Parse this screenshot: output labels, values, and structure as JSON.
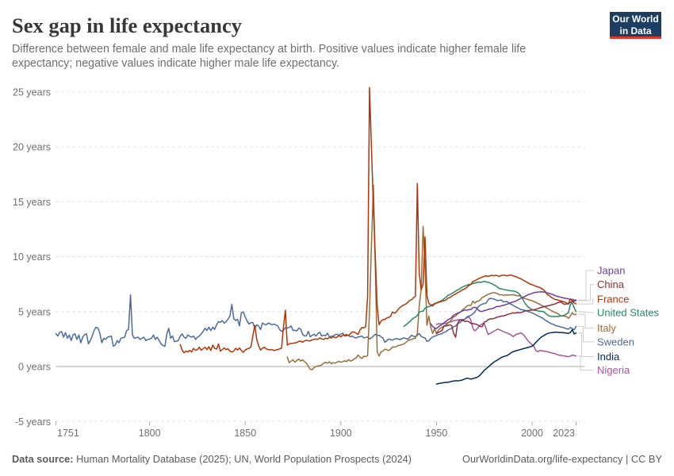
{
  "header": {
    "title": "Sex gap in life expectancy",
    "subtitle": "Difference between female and male life expectancy at birth. Positive values indicate higher female life expectancy; negative values indicate higher male life expectancy.",
    "subtitle_lines": [
      "Difference between female and male life expectancy at birth. Positive values indicate higher female life",
      "expectancy; negative values indicate higher male life expectancy."
    ],
    "logo": {
      "line1": "Our World",
      "line2": "in Data",
      "bg_color": "#1d3d63",
      "accent_color": "#e0362c"
    }
  },
  "chart_data": {
    "type": "line",
    "title": "Sex gap in life expectancy",
    "xlabel": "",
    "ylabel": "years",
    "xlim": [
      1751,
      2023
    ],
    "ylim": [
      -5,
      25.5
    ],
    "x_ticks": [
      1751,
      1800,
      1850,
      1900,
      1950,
      2000,
      2023
    ],
    "y_ticks": [
      -5,
      0,
      5,
      10,
      15,
      20,
      25
    ],
    "y_tick_suffix": " years",
    "grid": "horizontal-dashed",
    "legend_position": "right-edge-labels",
    "series": [
      {
        "name": "Japan",
        "color": "#6D3E91",
        "start_year": 1947,
        "end_year": 2023,
        "values": [
          3.9,
          3.65,
          3.5,
          3.45,
          3.61,
          3.74,
          3.84,
          3.99,
          4.12,
          4.27,
          4.34,
          4.49,
          4.67,
          4.76,
          4.87,
          4.92,
          5.02,
          5.1,
          5.13,
          5.13,
          5.17,
          5.2,
          5.35,
          5.39,
          5.33,
          5.12,
          5.02,
          5.02,
          5.1,
          5.12,
          5.2,
          5.24,
          5.26,
          5.32,
          5.42,
          5.48,
          5.45,
          5.55,
          5.55,
          5.63,
          5.68,
          5.75,
          5.81,
          5.87,
          5.92,
          6.0,
          6.1,
          6.2,
          6.28,
          6.37,
          6.45,
          6.55,
          6.6,
          6.66,
          6.72,
          6.75,
          6.78,
          6.79,
          6.8,
          6.78,
          6.75,
          6.7,
          6.65,
          6.6,
          6.55,
          6.45,
          6.4,
          6.35,
          6.3,
          6.25,
          6.22,
          6.2,
          6.15,
          6.1,
          6.12,
          6.05,
          6.05
        ]
      },
      {
        "name": "China",
        "color": "#883039",
        "start_year": 1950,
        "end_year": 2023,
        "values": [
          3.0,
          3.1,
          3.2,
          3.3,
          3.72,
          3.69,
          3.75,
          3.8,
          3.72,
          3.0,
          2.67,
          3.9,
          4.23,
          4.21,
          4.19,
          4.1,
          4.13,
          4.07,
          3.92,
          3.92,
          3.87,
          3.84,
          3.73,
          3.64,
          3.63,
          4.04,
          4.1,
          4.25,
          4.34,
          4.34,
          4.37,
          4.45,
          4.51,
          4.54,
          4.59,
          4.61,
          4.66,
          4.72,
          4.79,
          4.82,
          4.89,
          4.86,
          4.92,
          4.9,
          4.91,
          4.96,
          5.05,
          5.08,
          5.1,
          5.12,
          5.13,
          5.16,
          5.22,
          5.26,
          5.34,
          5.38,
          5.43,
          5.48,
          5.52,
          5.55,
          5.6,
          5.65,
          5.7,
          5.78,
          5.85,
          5.88,
          5.75,
          5.65,
          5.7,
          5.75,
          5.85,
          5.92,
          5.97,
          6.0
        ]
      },
      {
        "name": "France",
        "color": "#B13507",
        "start_year": 1816,
        "end_year": 2023,
        "values": [
          2.0,
          1.5,
          1.25,
          1.4,
          1.32,
          1.47,
          1.32,
          1.65,
          1.47,
          1.54,
          1.76,
          1.47,
          1.62,
          1.76,
          1.54,
          1.8,
          1.45,
          1.95,
          1.65,
          1.58,
          2.06,
          1.4,
          1.54,
          1.69,
          1.54,
          1.62,
          1.4,
          1.32,
          1.41,
          1.66,
          1.5,
          1.7,
          1.45,
          1.3,
          1.5,
          1.6,
          1.65,
          1.8,
          2.8,
          3.75,
          2.5,
          1.9,
          1.5,
          1.66,
          1.76,
          1.6,
          1.55,
          1.5,
          1.55,
          1.45,
          1.5,
          1.55,
          1.6,
          1.68,
          3.6,
          5.12,
          1.95,
          2.06,
          2.11,
          2.12,
          2.15,
          2.18,
          2.29,
          2.31,
          2.22,
          2.33,
          2.38,
          2.35,
          2.33,
          2.43,
          2.48,
          2.5,
          2.48,
          2.61,
          2.51,
          2.47,
          2.58,
          2.53,
          2.65,
          2.59,
          2.72,
          2.63,
          2.67,
          2.82,
          2.7,
          2.86,
          2.84,
          2.92,
          2.81,
          2.98,
          3.15,
          3.13,
          3.04,
          2.92,
          3.32,
          3.55,
          3.51,
          3.63,
          6.4,
          25.4,
          20.0,
          14.5,
          10.0,
          5.5,
          3.8,
          4.14,
          4.26,
          4.29,
          4.42,
          4.47,
          4.58,
          4.97,
          4.86,
          4.97,
          5.21,
          5.38,
          5.51,
          5.61,
          5.69,
          5.84,
          6.02,
          6.08,
          6.27,
          6.39,
          16.65,
          8.5,
          7.0,
          7.5,
          11.8,
          6.5,
          5.74,
          5.62,
          5.62,
          5.73,
          5.77,
          5.83,
          5.89,
          5.94,
          5.99,
          6.06,
          6.22,
          6.29,
          6.39,
          6.52,
          6.6,
          6.72,
          6.8,
          6.92,
          7.02,
          7.08,
          7.22,
          7.37,
          7.48,
          7.74,
          7.8,
          7.9,
          8.0,
          8.05,
          8.15,
          8.2,
          8.25,
          8.2,
          8.25,
          8.3,
          8.25,
          8.3,
          8.25,
          8.2,
          8.3,
          8.3,
          8.3,
          8.25,
          8.3,
          8.33,
          8.25,
          8.2,
          8.15,
          8.05,
          8.0,
          7.9,
          7.8,
          7.7,
          7.6,
          7.5,
          7.45,
          7.38,
          7.3,
          7.25,
          7.2,
          7.1,
          7.0,
          6.8,
          6.55,
          6.45,
          6.3,
          6.2,
          6.1,
          6.08,
          6.02,
          5.98,
          5.93,
          5.88,
          5.78,
          5.68,
          6.15,
          6.0,
          5.8,
          5.7
        ]
      },
      {
        "name": "United States",
        "color": "#2C8465",
        "start_year": 1933,
        "end_year": 2023,
        "values": [
          3.65,
          3.79,
          3.94,
          4.07,
          4.27,
          4.42,
          4.49,
          4.65,
          4.94,
          5.02,
          5.05,
          5.3,
          5.41,
          5.46,
          5.52,
          5.51,
          5.67,
          5.79,
          5.87,
          5.94,
          6.03,
          6.18,
          6.3,
          6.48,
          6.54,
          6.64,
          6.75,
          6.86,
          6.97,
          7.05,
          7.17,
          7.28,
          7.33,
          7.41,
          7.47,
          7.48,
          7.57,
          7.59,
          7.65,
          7.69,
          7.66,
          7.7,
          7.75,
          7.7,
          7.67,
          7.61,
          7.53,
          7.43,
          7.35,
          7.21,
          7.09,
          7.07,
          7.02,
          6.98,
          6.95,
          6.92,
          6.89,
          6.89,
          6.83,
          6.78,
          6.66,
          6.45,
          6.15,
          5.85,
          5.6,
          5.4,
          5.3,
          5.19,
          5.13,
          5.1,
          5.06,
          5.04,
          5.02,
          5.0,
          4.85,
          4.7,
          4.6,
          4.57,
          4.55,
          4.55,
          4.55,
          4.57,
          4.6,
          4.62,
          4.68,
          4.78,
          4.9,
          5.65,
          5.8,
          5.35,
          5.0
        ]
      },
      {
        "name": "Italy",
        "color": "#996D39",
        "start_year": 1872,
        "end_year": 2023,
        "values": [
          0.87,
          0.35,
          0.5,
          0.6,
          0.4,
          0.55,
          0.68,
          0.5,
          0.6,
          0.45,
          0.3,
          0.0,
          -0.25,
          -0.28,
          -0.1,
          0.0,
          0.05,
          0.07,
          0.15,
          0.3,
          0.38,
          0.3,
          0.43,
          0.25,
          0.35,
          0.3,
          0.4,
          0.48,
          0.4,
          0.45,
          0.53,
          0.45,
          0.63,
          0.5,
          0.55,
          0.7,
          0.78,
          1.04,
          0.84,
          0.73,
          0.94,
          0.9,
          1.0,
          5.0,
          11.0,
          16.5,
          9.0,
          1.31,
          0.95,
          1.33,
          1.41,
          1.58,
          1.52,
          1.46,
          1.58,
          1.79,
          1.76,
          1.82,
          1.91,
          1.93,
          2.01,
          2.04,
          2.19,
          2.35,
          2.42,
          2.47,
          2.54,
          2.56,
          3.0,
          5.5,
          7.0,
          12.75,
          9.0,
          3.75,
          4.6,
          3.6,
          3.0,
          3.45,
          3.0,
          3.32,
          3.49,
          3.59,
          3.68,
          3.76,
          3.97,
          4.09,
          4.29,
          4.52,
          4.59,
          4.78,
          4.9,
          5.03,
          5.23,
          5.32,
          5.52,
          5.57,
          5.57,
          5.96,
          5.77,
          5.92,
          5.96,
          6.07,
          6.3,
          6.36,
          6.48,
          6.57,
          6.63,
          6.69,
          6.73,
          6.69,
          6.63,
          6.51,
          6.55,
          6.48,
          6.51,
          6.5,
          6.52,
          6.53,
          6.54,
          6.5,
          6.45,
          6.45,
          6.4,
          6.27,
          6.21,
          6.15,
          6.09,
          6.03,
          6.0,
          5.91,
          5.85,
          5.73,
          5.67,
          5.55,
          5.49,
          5.4,
          5.3,
          5.2,
          5.1,
          5.0,
          4.92,
          4.85,
          4.75,
          4.6,
          4.62,
          4.58,
          4.55,
          4.38,
          4.6,
          4.9,
          4.72,
          4.76
        ]
      },
      {
        "name": "Sweden",
        "color": "#4C6A9C",
        "start_year": 1751,
        "end_year": 2023,
        "values": [
          3.0,
          2.77,
          3.1,
          3.18,
          2.67,
          3.08,
          2.57,
          2.87,
          2.36,
          2.9,
          2.97,
          2.46,
          2.87,
          2.16,
          2.67,
          2.9,
          2.97,
          2.06,
          2.36,
          2.77,
          3.28,
          3.58,
          3.48,
          3.0,
          2.16,
          2.57,
          2.46,
          2.67,
          2.72,
          2.77,
          1.85,
          1.95,
          2.36,
          2.16,
          2.57,
          2.62,
          2.67,
          3.28,
          3.38,
          6.53,
          2.87,
          2.57,
          2.62,
          2.67,
          2.46,
          2.57,
          2.67,
          2.36,
          2.46,
          2.5,
          2.57,
          2.87,
          2.46,
          2.67,
          2.36,
          2.06,
          1.9,
          1.85,
          2.97,
          3.48,
          2.57,
          2.77,
          2.26,
          2.3,
          2.36,
          2.77,
          2.97,
          2.67,
          2.57,
          2.87,
          2.75,
          2.67,
          2.77,
          2.46,
          2.67,
          2.77,
          2.97,
          3.2,
          3.48,
          3.28,
          3.58,
          3.28,
          3.58,
          3.38,
          3.8,
          4.09,
          4.02,
          4.19,
          3.94,
          4.09,
          4.3,
          4.6,
          5.65,
          4.37,
          4.19,
          4.3,
          3.7,
          4.89,
          4.98,
          4.5,
          4.13,
          3.87,
          4.0,
          4.0,
          3.45,
          3.79,
          3.7,
          3.36,
          3.96,
          3.85,
          3.79,
          3.96,
          3.9,
          3.79,
          3.87,
          3.79,
          3.7,
          3.36,
          3.2,
          3.3,
          3.54,
          3.5,
          3.55,
          3.7,
          3.28,
          3.3,
          3.24,
          3.5,
          3.4,
          2.94,
          2.77,
          2.8,
          3.2,
          2.69,
          2.85,
          2.94,
          2.77,
          3.0,
          3.11,
          2.77,
          2.85,
          2.8,
          3.03,
          2.69,
          2.75,
          2.77,
          2.9,
          2.94,
          2.85,
          2.95,
          3.03,
          2.77,
          2.8,
          2.85,
          2.69,
          2.77,
          2.65,
          2.6,
          2.69,
          2.72,
          2.77,
          2.6,
          2.65,
          2.69,
          2.51,
          2.6,
          2.77,
          2.94,
          2.8,
          2.85,
          2.7,
          2.6,
          2.2,
          2.35,
          2.5,
          2.45,
          2.4,
          2.5,
          2.55,
          2.5,
          2.45,
          2.55,
          2.6,
          2.55,
          2.5,
          2.65,
          2.85,
          2.75,
          2.7,
          2.85,
          3.0,
          2.75,
          2.65,
          2.6,
          2.3,
          2.35,
          2.55,
          2.69,
          2.75,
          2.83,
          2.9,
          2.94,
          3.02,
          3.11,
          3.17,
          3.32,
          3.4,
          3.49,
          3.62,
          3.7,
          3.87,
          3.97,
          4.12,
          4.24,
          4.33,
          4.52,
          4.6,
          4.64,
          4.8,
          4.94,
          5.23,
          5.48,
          5.6,
          5.68,
          5.73,
          5.77,
          6.07,
          6.21,
          6.17,
          6.15,
          6.07,
          6.0,
          6.03,
          6.06,
          5.88,
          5.91,
          5.9,
          5.76,
          5.67,
          5.58,
          5.47,
          5.37,
          5.3,
          5.19,
          5.16,
          5.13,
          5.06,
          5.0,
          4.95,
          4.89,
          4.8,
          4.71,
          4.62,
          4.53,
          4.45,
          4.35,
          4.2,
          4.1,
          4.0,
          3.9,
          3.85,
          3.75,
          3.7,
          3.65,
          3.6,
          3.56,
          3.5,
          3.45,
          3.39,
          3.55,
          3.45,
          3.35,
          3.65
        ]
      },
      {
        "name": "India",
        "color": "#00295B",
        "start_year": 1950,
        "end_year": 2023,
        "values": [
          -1.6,
          -1.55,
          -1.52,
          -1.5,
          -1.45,
          -1.45,
          -1.42,
          -1.4,
          -1.35,
          -1.32,
          -1.3,
          -1.3,
          -1.28,
          -1.25,
          -1.2,
          -1.12,
          -1.06,
          -1.1,
          -1.15,
          -1.1,
          -1.05,
          -1.0,
          -0.9,
          -0.75,
          -0.55,
          -0.35,
          -0.2,
          -0.05,
          0.1,
          0.25,
          0.4,
          0.5,
          0.6,
          0.72,
          0.82,
          0.9,
          0.95,
          1.0,
          1.12,
          1.25,
          1.35,
          1.4,
          1.45,
          1.5,
          1.55,
          1.6,
          1.65,
          1.7,
          1.74,
          1.8,
          1.85,
          2.0,
          2.2,
          2.38,
          2.55,
          2.7,
          2.8,
          2.9,
          3.0,
          3.05,
          3.08,
          3.1,
          3.12,
          3.12,
          3.1,
          3.1,
          3.08,
          3.06,
          3.04,
          3.02,
          3.1,
          3.35,
          2.97,
          3.05
        ]
      },
      {
        "name": "Nigeria",
        "color": "#A2559C",
        "start_year": 1950,
        "end_year": 2023,
        "values": [
          3.85,
          3.89,
          3.89,
          3.89,
          3.91,
          3.92,
          4.02,
          4.04,
          4.09,
          4.17,
          4.2,
          4.25,
          4.25,
          4.28,
          4.29,
          4.32,
          4.45,
          4.53,
          4.2,
          3.5,
          3.24,
          3.39,
          3.58,
          3.79,
          3.89,
          3.91,
          3.43,
          2.9,
          3.01,
          3.1,
          3.21,
          3.3,
          3.41,
          3.34,
          3.27,
          3.18,
          3.1,
          3.05,
          2.97,
          2.87,
          2.73,
          2.83,
          2.96,
          2.98,
          3.06,
          2.97,
          2.79,
          2.55,
          2.3,
          2.15,
          2.0,
          1.82,
          1.45,
          1.35,
          1.45,
          1.45,
          1.4,
          1.38,
          1.35,
          1.3,
          1.25,
          1.2,
          1.17,
          1.1,
          1.04,
          1.02,
          0.99,
          0.95,
          0.93,
          0.89,
          0.95,
          1.04,
          1.0,
          0.96
        ]
      }
    ]
  },
  "footer": {
    "source_label": "Data source:",
    "source_text": "Human Mortality Database (2025); UN, World Population Prospects (2024)",
    "right_text": "OurWorldinData.org/life-expectancy | CC BY"
  }
}
